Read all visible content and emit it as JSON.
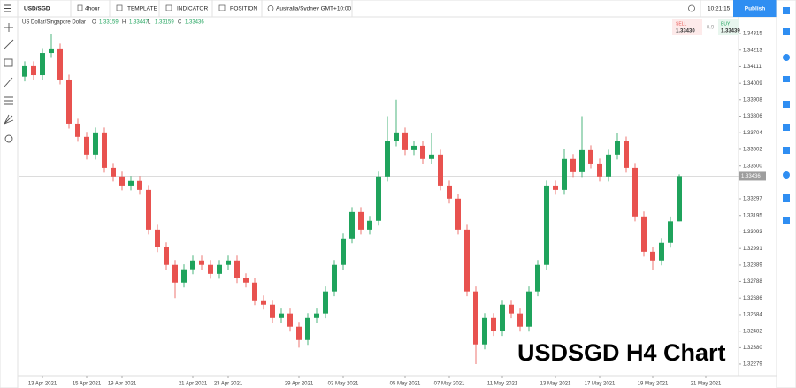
{
  "toolbar": {
    "symbol": "USD/SGD",
    "interval": "4hour",
    "template": "TEMPLATE",
    "indicator": "INDICATOR",
    "position": "POSITION",
    "timezone": "Australia/Sydney GMT+10:00",
    "clock": "10:21:15",
    "publish": "Publish"
  },
  "info": {
    "name": "US Dollar/Singapore Dollar",
    "o_label": "O",
    "o": "1.33159",
    "h_label": "H",
    "h": "1.33447",
    "l_label": "L",
    "l": "1.33159",
    "c_label": "C",
    "c": "1.33436"
  },
  "quote": {
    "sell_label": "SELL",
    "sell": "1.33430",
    "spread": "0.9",
    "buy_label": "BUY",
    "buy": "1.33439"
  },
  "watermark": "USDSGD H4 Chart",
  "chart_data": {
    "type": "candlestick",
    "up_color": "#1fa35c",
    "down_color": "#e8524f",
    "ylim": [
      1.32208,
      1.34413
    ],
    "yticks": [
      1.34315,
      1.34213,
      1.34111,
      1.34009,
      1.33908,
      1.33806,
      1.33704,
      1.33602,
      {
        "value": 1.335,
        "label": "1.33500"
      },
      1.33297,
      1.33195,
      1.33093,
      1.32991,
      1.32889,
      1.32788,
      1.32686,
      1.32584,
      1.32482,
      {
        "value": 1.3238,
        "label": "1.32380"
      },
      1.32279
    ],
    "last_price": 1.33436,
    "categories": [
      null,
      null,
      "13 Apr 2021",
      null,
      null,
      null,
      null,
      "15 Apr 2021",
      null,
      null,
      null,
      "19 Apr 2021",
      null,
      null,
      null,
      null,
      null,
      null,
      null,
      "21 Apr 2021",
      null,
      null,
      null,
      "23 Apr 2021",
      null,
      null,
      null,
      null,
      null,
      null,
      null,
      "29 Apr 2021",
      null,
      null,
      null,
      null,
      "03 May 2021",
      null,
      null,
      null,
      null,
      null,
      null,
      "05 May 2021",
      null,
      null,
      null,
      null,
      "07 May 2021",
      null,
      null,
      null,
      null,
      null,
      "11 May 2021",
      null,
      null,
      null,
      null,
      null,
      "13 May 2021",
      null,
      null,
      null,
      null,
      "17 May 2021",
      null,
      null,
      null,
      null,
      null,
      "19 May 2021",
      null,
      null,
      null,
      null,
      null,
      "21 May 2021"
    ],
    "open": [
      1.3405,
      1.34114,
      1.34059,
      1.34195,
      1.34223,
      1.34032,
      1.3376,
      1.33679,
      1.3357,
      1.33706,
      1.33488,
      1.33434,
      1.33379,
      1.33407,
      1.33352,
      1.33107,
      1.32999,
      1.3289,
      1.32781,
      1.32863,
      1.32917,
      1.3289,
      1.32835,
      1.3289,
      1.32917,
      1.32808,
      1.32781,
      1.32672,
      1.32645,
      1.32563,
      1.32591,
      1.32509,
      1.32427,
      1.32563,
      1.32591,
      1.32727,
      1.3289,
      1.33053,
      1.33216,
      1.33107,
      1.33162,
      1.33434,
      1.33651,
      1.33706,
      1.33597,
      1.33624,
      1.33543,
      1.3357,
      1.33379,
      1.33298,
      1.33107,
      1.32727,
      1.324,
      1.32563,
      1.32482,
      1.32645,
      1.32591,
      1.32509,
      1.32727,
      1.3289,
      1.33379,
      1.33352,
      1.33543,
      1.33461,
      1.33597,
      1.33515,
      1.33434,
      1.3357,
      1.33651,
      1.33488,
      1.33189,
      1.32971,
      1.32917,
      1.33026,
      1.33159,
      null,
      null,
      null
    ],
    "high": [
      1.34144,
      1.34144,
      1.34225,
      1.34315,
      1.34253,
      1.34062,
      1.3379,
      1.33709,
      1.33736,
      1.33736,
      1.33518,
      1.33464,
      1.33437,
      1.33437,
      1.33382,
      1.33137,
      1.33029,
      1.3292,
      1.32893,
      1.32947,
      1.32947,
      1.3292,
      1.3292,
      1.32947,
      1.32947,
      1.32838,
      1.32811,
      1.32702,
      1.32675,
      1.32621,
      1.32621,
      1.32539,
      1.32593,
      1.32621,
      1.32757,
      1.3292,
      1.33083,
      1.33246,
      1.33246,
      1.33192,
      1.33464,
      1.33806,
      1.33908,
      1.33736,
      1.33654,
      1.33654,
      1.33704,
      1.336,
      1.33409,
      1.33328,
      1.33137,
      1.32757,
      1.32593,
      1.32593,
      1.32675,
      1.32675,
      1.32621,
      1.32757,
      1.3292,
      1.33409,
      1.33409,
      1.33602,
      1.33573,
      1.33806,
      1.33627,
      1.33545,
      1.336,
      1.33704,
      1.33681,
      1.33518,
      1.33219,
      1.33001,
      1.33056,
      1.33189,
      1.33447,
      null,
      null,
      null
    ],
    "low": [
      1.3402,
      1.34029,
      1.34029,
      1.34165,
      1.34002,
      1.3373,
      1.33649,
      1.3354,
      1.3354,
      1.33458,
      1.33404,
      1.33349,
      1.33349,
      1.33322,
      1.33077,
      1.32969,
      1.3286,
      1.32686,
      1.32751,
      1.32833,
      1.3286,
      1.32805,
      1.32805,
      1.3286,
      1.32778,
      1.32751,
      1.32642,
      1.32615,
      1.32533,
      1.32533,
      1.32479,
      1.3238,
      1.32397,
      1.32533,
      1.32561,
      1.32697,
      1.3286,
      1.33023,
      1.33077,
      1.33077,
      1.33132,
      1.33404,
      1.33621,
      1.33567,
      1.33567,
      1.33513,
      1.33513,
      1.33349,
      1.33268,
      1.33077,
      1.32697,
      1.32279,
      1.3237,
      1.32452,
      1.32452,
      1.32561,
      1.32479,
      1.32479,
      1.32697,
      1.3286,
      1.33322,
      1.33322,
      1.33431,
      1.33431,
      1.33485,
      1.33404,
      1.33404,
      1.3354,
      1.33458,
      1.33159,
      1.32941,
      1.3286,
      1.32887,
      1.32996,
      1.33159,
      null,
      null,
      null
    ],
    "close": [
      1.34114,
      1.34059,
      1.34195,
      1.34223,
      1.34032,
      1.3376,
      1.33679,
      1.3357,
      1.33706,
      1.33488,
      1.33434,
      1.33379,
      1.33407,
      1.33352,
      1.33107,
      1.32999,
      1.3289,
      1.32781,
      1.32863,
      1.32917,
      1.3289,
      1.32835,
      1.3289,
      1.32917,
      1.32808,
      1.32781,
      1.32672,
      1.32645,
      1.32563,
      1.32591,
      1.32509,
      1.32427,
      1.32563,
      1.32591,
      1.32727,
      1.3289,
      1.33053,
      1.33216,
      1.33107,
      1.33162,
      1.33434,
      1.33651,
      1.33706,
      1.33597,
      1.33624,
      1.33543,
      1.3357,
      1.33379,
      1.33298,
      1.33107,
      1.32727,
      1.324,
      1.32563,
      1.32482,
      1.32645,
      1.32591,
      1.32509,
      1.32727,
      1.3289,
      1.33379,
      1.33352,
      1.33543,
      1.33461,
      1.33597,
      1.33515,
      1.33434,
      1.3357,
      1.33651,
      1.33488,
      1.33189,
      1.32971,
      1.32917,
      1.33026,
      1.33159,
      1.33436,
      null,
      null,
      null
    ]
  }
}
